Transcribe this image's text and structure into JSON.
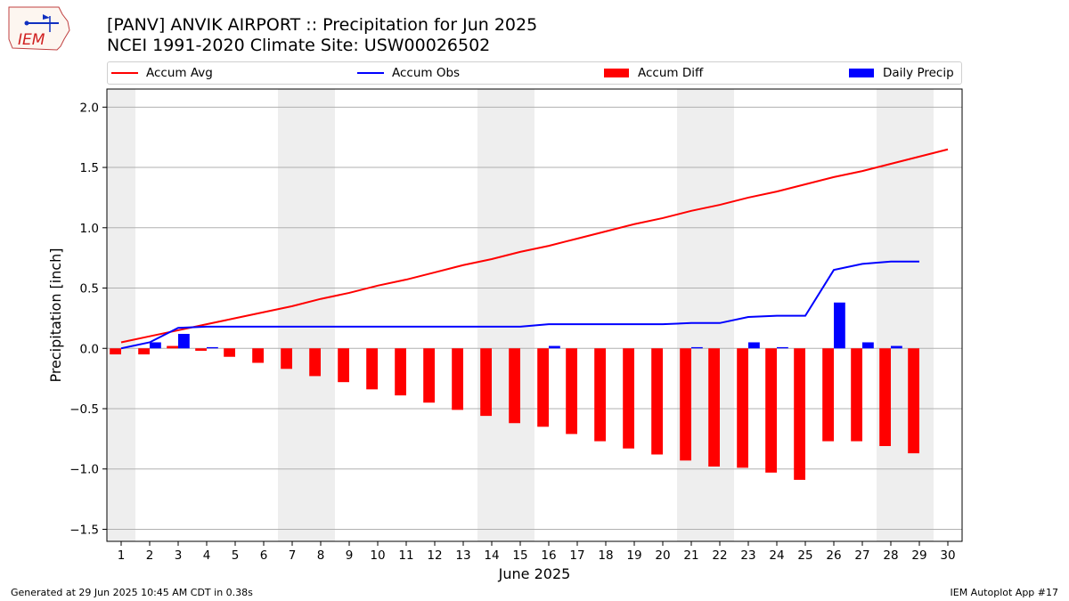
{
  "header": {
    "title_line1": "[PANV] ANVIK AIRPORT :: Precipitation for Jun 2025",
    "title_line2": "NCEI 1991-2020 Climate Site: USW00026502",
    "logo_text": "IEM"
  },
  "footer": {
    "left": "Generated at 29 Jun 2025 10:45 AM CDT in 0.38s",
    "right": "IEM Autoplot App #17"
  },
  "colors": {
    "avg": "#ff0000",
    "obs": "#0000ff",
    "diff": "#ff0000",
    "daily": "#0000ff",
    "weekend_shade": "#eeeeee",
    "grid": "#b0b0b0"
  },
  "chart_data": {
    "type": "bar",
    "xlabel": "June 2025",
    "ylabel": "Precipitation [inch]",
    "xlim": [
      0.5,
      30.5
    ],
    "ylim": [
      -1.6,
      2.15
    ],
    "grid": true,
    "legend_placement": "top",
    "legend": [
      "Accum Avg",
      "Accum Obs",
      "Accum Diff",
      "Daily Precip"
    ],
    "x_ticks": [
      "1",
      "2",
      "3",
      "4",
      "5",
      "6",
      "7",
      "8",
      "9",
      "10",
      "11",
      "12",
      "13",
      "14",
      "15",
      "16",
      "17",
      "18",
      "19",
      "20",
      "21",
      "22",
      "23",
      "24",
      "25",
      "26",
      "27",
      "28",
      "29",
      "30"
    ],
    "y_ticks": [
      -1.5,
      -1.0,
      -0.5,
      0.0,
      0.5,
      1.0,
      1.5,
      2.0
    ],
    "y_tick_labels": [
      "−1.5",
      "−1.0",
      "−0.5",
      "0.0",
      "0.5",
      "1.0",
      "1.5",
      "2.0"
    ],
    "weekend_days": [
      1,
      7,
      8,
      14,
      15,
      21,
      22,
      28,
      29
    ],
    "days": [
      1,
      2,
      3,
      4,
      5,
      6,
      7,
      8,
      9,
      10,
      11,
      12,
      13,
      14,
      15,
      16,
      17,
      18,
      19,
      20,
      21,
      22,
      23,
      24,
      25,
      26,
      27,
      28,
      29,
      30
    ],
    "series": [
      {
        "name": "Accum Avg",
        "type": "line",
        "values": [
          0.05,
          0.1,
          0.15,
          0.2,
          0.25,
          0.3,
          0.35,
          0.41,
          0.46,
          0.52,
          0.57,
          0.63,
          0.69,
          0.74,
          0.8,
          0.85,
          0.91,
          0.97,
          1.03,
          1.08,
          1.14,
          1.19,
          1.25,
          1.3,
          1.36,
          1.42,
          1.47,
          1.53,
          1.59,
          1.65
        ]
      },
      {
        "name": "Accum Obs",
        "type": "line",
        "values": [
          0.0,
          0.05,
          0.17,
          0.18,
          0.18,
          0.18,
          0.18,
          0.18,
          0.18,
          0.18,
          0.18,
          0.18,
          0.18,
          0.18,
          0.18,
          0.2,
          0.2,
          0.2,
          0.2,
          0.2,
          0.21,
          0.21,
          0.26,
          0.27,
          0.27,
          0.65,
          0.7,
          0.72,
          0.72
        ]
      },
      {
        "name": "Accum Diff",
        "type": "bar",
        "values": [
          -0.05,
          -0.05,
          0.02,
          -0.02,
          -0.07,
          -0.12,
          -0.17,
          -0.23,
          -0.28,
          -0.34,
          -0.39,
          -0.45,
          -0.51,
          -0.56,
          -0.62,
          -0.65,
          -0.71,
          -0.77,
          -0.83,
          -0.88,
          -0.93,
          -0.98,
          -0.99,
          -1.03,
          -1.09,
          -0.77,
          -0.77,
          -0.81,
          -0.87
        ]
      },
      {
        "name": "Daily Precip",
        "type": "bar",
        "values": [
          0.0,
          0.05,
          0.12,
          0.01,
          0.0,
          0.0,
          0.0,
          0.0,
          0.0,
          0.0,
          0.0,
          0.0,
          0.0,
          0.0,
          0.0,
          0.02,
          0.0,
          0.0,
          0.0,
          0.0,
          0.01,
          0.0,
          0.05,
          0.01,
          0.0,
          0.38,
          0.05,
          0.02,
          0.0
        ]
      }
    ]
  }
}
